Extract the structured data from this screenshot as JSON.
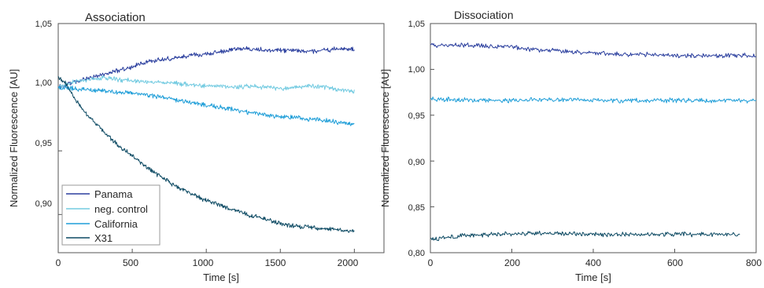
{
  "chart_data": [
    {
      "type": "line",
      "title": "Association",
      "xlabel": "Time [s]",
      "ylabel": "Normalized Fluorescence [AU]",
      "xlim": [
        0,
        2200
      ],
      "ylim": [
        0.87,
        1.05
      ],
      "x_ticks": [
        "0",
        "500",
        "1000",
        "1500",
        "2000"
      ],
      "y_ticks": [
        "0,90",
        "0,95",
        "1,00",
        "1,05"
      ],
      "legend_position": "bottom-left",
      "series": [
        {
          "name": "Panama",
          "color": "#2b3f9e",
          "x": [
            0,
            100,
            200,
            300,
            400,
            500,
            600,
            700,
            800,
            900,
            1000,
            1100,
            1200,
            1300,
            1400,
            1500,
            1600,
            1700,
            1800,
            1900,
            2000
          ],
          "y": [
            1.0,
            1.004,
            1.007,
            1.01,
            1.013,
            1.016,
            1.02,
            1.022,
            1.023,
            1.025,
            1.026,
            1.028,
            1.03,
            1.03,
            1.029,
            1.029,
            1.029,
            1.028,
            1.029,
            1.03,
            1.03
          ]
        },
        {
          "name": "neg. control",
          "color": "#74cbe1",
          "x": [
            0,
            100,
            200,
            300,
            400,
            500,
            600,
            700,
            800,
            900,
            1000,
            1100,
            1200,
            1300,
            1400,
            1500,
            1600,
            1700,
            1800,
            1900,
            2000
          ],
          "y": [
            1.0,
            1.004,
            1.006,
            1.007,
            1.006,
            1.005,
            1.004,
            1.004,
            1.003,
            1.002,
            1.001,
            1.001,
            1.0,
            1.001,
            1.0,
            0.999,
            1.0,
            1.001,
            1.0,
            0.998,
            0.997
          ]
        },
        {
          "name": "California",
          "color": "#1f9ed8",
          "x": [
            0,
            100,
            200,
            300,
            400,
            500,
            600,
            700,
            800,
            900,
            1000,
            1100,
            1200,
            1300,
            1400,
            1500,
            1600,
            1700,
            1800,
            1900,
            2000
          ],
          "y": [
            1.0,
            0.999,
            0.998,
            0.997,
            0.996,
            0.995,
            0.994,
            0.992,
            0.99,
            0.988,
            0.986,
            0.984,
            0.982,
            0.98,
            0.978,
            0.977,
            0.976,
            0.975,
            0.974,
            0.972,
            0.971
          ]
        },
        {
          "name": "X31",
          "color": "#0d4a63",
          "x": [
            0,
            50,
            100,
            150,
            200,
            300,
            400,
            500,
            600,
            700,
            800,
            900,
            1000,
            1100,
            1200,
            1300,
            1400,
            1500,
            1600,
            1700,
            1800,
            1900,
            2000
          ],
          "y": [
            1.008,
            1.003,
            0.993,
            0.985,
            0.978,
            0.966,
            0.955,
            0.946,
            0.937,
            0.929,
            0.922,
            0.916,
            0.911,
            0.907,
            0.903,
            0.899,
            0.896,
            0.893,
            0.891,
            0.89,
            0.889,
            0.888,
            0.887
          ]
        }
      ]
    },
    {
      "type": "line",
      "title": "Dissociation",
      "xlabel": "Time [s]",
      "ylabel": "Normalized Fluorescence [AU]",
      "xlim": [
        0,
        800
      ],
      "ylim": [
        0.8,
        1.05
      ],
      "x_ticks": [
        "0",
        "200",
        "400",
        "600",
        "800"
      ],
      "y_ticks": [
        "0,80",
        "0,85",
        "0,90",
        "0,95",
        "1,00",
        "1,05"
      ],
      "series": [
        {
          "name": "",
          "color": "#2b3f9e",
          "x": [
            0,
            50,
            100,
            150,
            200,
            250,
            300,
            350,
            400,
            450,
            500,
            550,
            600,
            650,
            700,
            750,
            800
          ],
          "y": [
            1.027,
            1.026,
            1.026,
            1.025,
            1.024,
            1.022,
            1.021,
            1.019,
            1.018,
            1.017,
            1.016,
            1.016,
            1.015,
            1.015,
            1.015,
            1.015,
            1.015
          ]
        },
        {
          "name": "",
          "color": "#1f9ed8",
          "x": [
            0,
            50,
            100,
            150,
            200,
            250,
            300,
            350,
            400,
            450,
            500,
            550,
            600,
            650,
            700,
            750,
            800
          ],
          "y": [
            0.968,
            0.967,
            0.967,
            0.966,
            0.966,
            0.967,
            0.967,
            0.967,
            0.966,
            0.966,
            0.966,
            0.966,
            0.966,
            0.966,
            0.966,
            0.966,
            0.966
          ]
        },
        {
          "name": "",
          "color": "#0d4a63",
          "x": [
            0,
            50,
            100,
            150,
            200,
            250,
            300,
            350,
            400,
            450,
            500,
            550,
            600,
            650,
            700,
            760
          ],
          "y": [
            0.815,
            0.817,
            0.819,
            0.82,
            0.82,
            0.821,
            0.821,
            0.821,
            0.82,
            0.82,
            0.82,
            0.82,
            0.82,
            0.82,
            0.82,
            0.82
          ]
        }
      ]
    }
  ]
}
